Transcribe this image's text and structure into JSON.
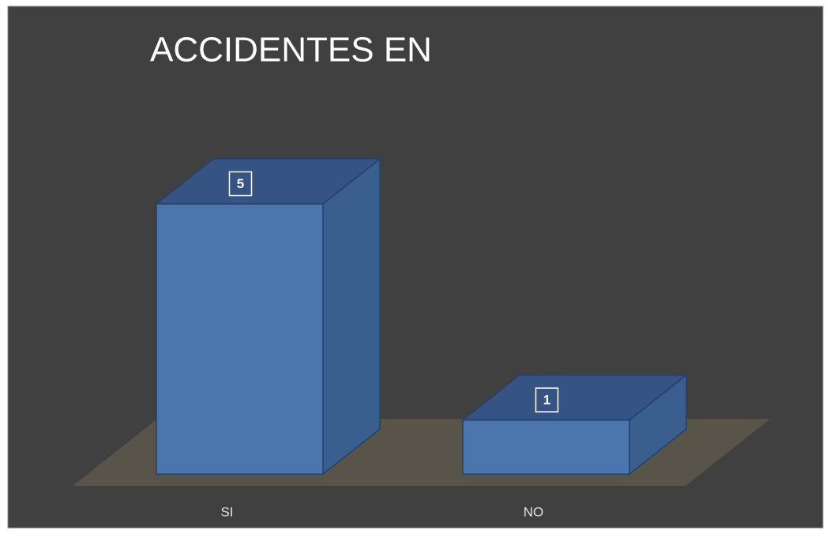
{
  "chart_data": {
    "type": "bar3d",
    "title": "ACCIDENTES EN",
    "categories": [
      "SI",
      "NO"
    ],
    "values": [
      5,
      1
    ],
    "color": "#4a76ad",
    "ylim": [
      0,
      5
    ]
  }
}
